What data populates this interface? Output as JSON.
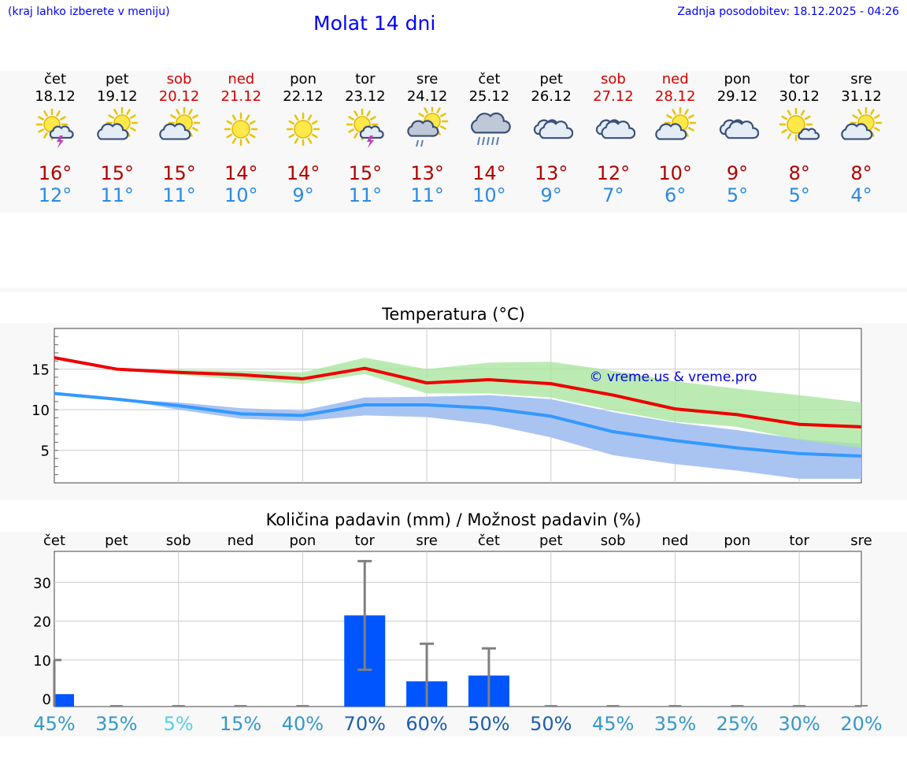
{
  "header": {
    "hint": "(kraj lahko izberete v meniju)",
    "title": "Molat 14 dni",
    "updated_label": "Zadnja posodobitev:",
    "updated_value": "18.12.2025 - 04:26"
  },
  "days": [
    {
      "name": "čet",
      "date": "18.12",
      "weekend": false,
      "icon": "sun-cloud-thunder-icon",
      "tmax": "16°",
      "tmin": "12°"
    },
    {
      "name": "pet",
      "date": "19.12",
      "weekend": false,
      "icon": "cloud-sun-icon",
      "tmax": "15°",
      "tmin": "11°"
    },
    {
      "name": "sob",
      "date": "20.12",
      "weekend": true,
      "icon": "cloud-sun-icon",
      "tmax": "15°",
      "tmin": "11°"
    },
    {
      "name": "ned",
      "date": "21.12",
      "weekend": true,
      "icon": "sun-icon",
      "tmax": "14°",
      "tmin": "10°"
    },
    {
      "name": "pon",
      "date": "22.12",
      "weekend": false,
      "icon": "sun-icon",
      "tmax": "14°",
      "tmin": "9°"
    },
    {
      "name": "tor",
      "date": "23.12",
      "weekend": false,
      "icon": "sun-cloud-thunder-icon",
      "tmax": "15°",
      "tmin": "11°"
    },
    {
      "name": "sre",
      "date": "24.12",
      "weekend": false,
      "icon": "sun-cloud-rain-icon",
      "tmax": "13°",
      "tmin": "11°"
    },
    {
      "name": "čet",
      "date": "25.12",
      "weekend": false,
      "icon": "cloud-heavy-rain-icon",
      "tmax": "14°",
      "tmin": "10°"
    },
    {
      "name": "pet",
      "date": "26.12",
      "weekend": false,
      "icon": "cloud-icon",
      "tmax": "13°",
      "tmin": "9°"
    },
    {
      "name": "sob",
      "date": "27.12",
      "weekend": true,
      "icon": "cloud-icon",
      "tmax": "12°",
      "tmin": "7°"
    },
    {
      "name": "ned",
      "date": "28.12",
      "weekend": true,
      "icon": "cloud-sun-icon",
      "tmax": "10°",
      "tmin": "6°"
    },
    {
      "name": "pon",
      "date": "29.12",
      "weekend": false,
      "icon": "cloud-icon",
      "tmax": "9°",
      "tmin": "5°"
    },
    {
      "name": "tor",
      "date": "30.12",
      "weekend": false,
      "icon": "sun-small-cloud-icon",
      "tmax": "8°",
      "tmin": "5°"
    },
    {
      "name": "sre",
      "date": "31.12",
      "weekend": false,
      "icon": "cloud-sun-icon",
      "tmax": "8°",
      "tmin": "4°"
    }
  ],
  "chart_data": [
    {
      "type": "line",
      "title": "Temperatura (°C)",
      "watermark": "© vreme.us & vreme.pro",
      "x": [
        0,
        1,
        2,
        3,
        4,
        5,
        6,
        7,
        8,
        9,
        10,
        11,
        12,
        13
      ],
      "xlim": [
        0,
        13
      ],
      "ylim": [
        1,
        20
      ],
      "yticks": [
        5,
        10,
        15
      ],
      "colors": {
        "max": "#ee0000",
        "min": "#3399ff",
        "max_band": "#aae6a0",
        "min_band": "#aac4f2",
        "overlap": "#7ec5a6"
      },
      "series": [
        {
          "name": "max",
          "values": [
            16.4,
            15.0,
            14.6,
            14.3,
            13.8,
            15.1,
            13.3,
            13.7,
            13.2,
            11.8,
            10.1,
            9.4,
            8.2,
            7.9
          ]
        },
        {
          "name": "min",
          "values": [
            12.0,
            11.3,
            10.5,
            9.5,
            9.3,
            10.6,
            10.6,
            10.2,
            9.2,
            7.3,
            6.2,
            5.3,
            4.6,
            4.3
          ]
        }
      ],
      "bands": [
        {
          "name": "max_range",
          "low": [
            16.4,
            15.0,
            14.3,
            13.7,
            13.2,
            14.4,
            12.0,
            12.0,
            11.5,
            9.9,
            8.5,
            7.9,
            6.3,
            5.3
          ],
          "high": [
            16.4,
            15.0,
            14.9,
            14.8,
            14.6,
            16.4,
            15.0,
            15.8,
            15.9,
            14.8,
            13.5,
            12.6,
            11.8,
            10.9
          ]
        },
        {
          "name": "min_range",
          "low": [
            12.0,
            11.3,
            10.0,
            8.9,
            8.6,
            9.3,
            9.1,
            8.2,
            6.6,
            4.4,
            3.3,
            2.5,
            1.5,
            1.5
          ],
          "high": [
            12.0,
            11.3,
            10.9,
            10.2,
            9.9,
            11.5,
            11.6,
            11.8,
            11.3,
            9.7,
            8.4,
            7.5,
            6.4,
            5.8
          ]
        }
      ]
    },
    {
      "type": "bar",
      "title": "Količina padavin (mm) / Možnost padavin (%)",
      "categories": [
        "čet",
        "pet",
        "sob",
        "ned",
        "pon",
        "tor",
        "sre",
        "čet",
        "pet",
        "sob",
        "ned",
        "pon",
        "tor",
        "sre"
      ],
      "ylim": [
        -2,
        38
      ],
      "yticks": [
        0,
        10,
        20,
        30
      ],
      "values": [
        1.2,
        0,
        0,
        0,
        0,
        21.5,
        4.5,
        6.0,
        0,
        0,
        0,
        0,
        0,
        0
      ],
      "error_low": [
        0,
        0,
        0,
        0,
        0,
        7.5,
        0,
        0,
        0,
        0,
        0,
        0,
        0,
        0
      ],
      "error_high": [
        10,
        0,
        0,
        0,
        0,
        35.5,
        14.2,
        13.0,
        0,
        0,
        0,
        0,
        0,
        0
      ],
      "probability": [
        "45%",
        "35%",
        "5%",
        "15%",
        "40%",
        "70%",
        "60%",
        "50%",
        "50%",
        "45%",
        "35%",
        "25%",
        "30%",
        "20%"
      ],
      "probability_values": [
        45,
        35,
        5,
        15,
        40,
        70,
        60,
        50,
        50,
        45,
        35,
        25,
        30,
        20
      ],
      "bar_color": "#0055ff",
      "error_color": "#808080"
    }
  ]
}
